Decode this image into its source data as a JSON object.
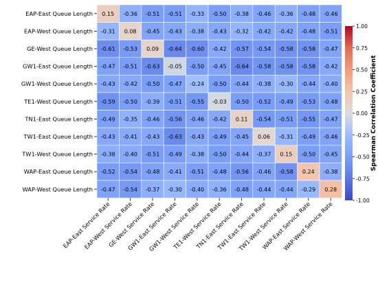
{
  "chart_data": {
    "type": "heatmap",
    "title": "",
    "xlabel": "",
    "ylabel": "",
    "rows": [
      "EAP-East Queue Length",
      "EAP-West Queue Length",
      "GE-West Queue Length",
      "GW1-East Queue Length",
      "GW1-West Queue Length",
      "TE1-West Queue Length",
      "TN1-East Queue Length",
      "TW1-East Queue Length",
      "TW1-West Queue Length",
      "WAP-East Queue Length",
      "WAP-West Queue Length"
    ],
    "columns": [
      "EAP-East Service Rate",
      "EAP-West Service Rate",
      "GE-West Service Rate",
      "GW1-East Service Rate",
      "GW1-West Service Rate",
      "TE1-West Service Rate",
      "TN1-East Service Rate",
      "TW1-East Service Rate",
      "TW1-West Service Rate",
      "WAP-East Service Rate",
      "WAP-West Service Rate"
    ],
    "values": [
      [
        "0.15",
        "-0.36",
        "-0.51",
        "-0.51",
        "-0.33",
        "-0.50",
        "-0.38",
        "-0.46",
        "-0.36",
        "-0.48",
        "-0.46"
      ],
      [
        "-0.31",
        "0.08",
        "-0.45",
        "-0.43",
        "-0.38",
        "-0.43",
        "-0.32",
        "-0.42",
        "-0.42",
        "-0.48",
        "-0.51"
      ],
      [
        "-0.61",
        "-0.53",
        "0.09",
        "-0.64",
        "-0.60",
        "-0.42",
        "-0.57",
        "-0.54",
        "-0.58",
        "-0.58",
        "-0.47"
      ],
      [
        "-0.47",
        "-0.51",
        "-0.63",
        "-0.05",
        "-0.50",
        "-0.45",
        "-0.64",
        "-0.58",
        "-0.58",
        "-0.58",
        "-0.42"
      ],
      [
        "-0.43",
        "-0.42",
        "-0.50",
        "-0.47",
        "-0.24",
        "-0.50",
        "-0.44",
        "-0.38",
        "-0.30",
        "-0.44",
        "-0.40"
      ],
      [
        "-0.59",
        "-0.50",
        "-0.39",
        "-0.51",
        "-0.55",
        "-0.03",
        "-0.50",
        "-0.52",
        "-0.49",
        "-0.53",
        "-0.48"
      ],
      [
        "-0.49",
        "-0.35",
        "-0.46",
        "-0.56",
        "-0.46",
        "-0.42",
        "0.11",
        "-0.54",
        "-0.51",
        "-0.55",
        "-0.47"
      ],
      [
        "-0.43",
        "-0.41",
        "-0.43",
        "-0.63",
        "-0.43",
        "-0.49",
        "-0.45",
        "0.06",
        "-0.31",
        "-0.49",
        "-0.46"
      ],
      [
        "-0.38",
        "-0.40",
        "-0.51",
        "-0.49",
        "-0.38",
        "-0.50",
        "-0.44",
        "-0.37",
        "0.15",
        "-0.50",
        "-0.45"
      ],
      [
        "-0.52",
        "-0.54",
        "-0.48",
        "-0.41",
        "-0.51",
        "-0.48",
        "-0.56",
        "-0.46",
        "-0.58",
        "0.24",
        "-0.38"
      ],
      [
        "-0.47",
        "-0.54",
        "-0.37",
        "-0.30",
        "-0.40",
        "-0.36",
        "-0.48",
        "-0.44",
        "-0.44",
        "-0.29",
        "0.28"
      ]
    ],
    "colorbar": {
      "label": "Spearman Correlation Coefficient",
      "min": -1.0,
      "max": 1.0,
      "colormap": "coolwarm",
      "ticks": [
        "1.00",
        "0.75",
        "0.50",
        "0.25",
        "0.00",
        "-0.25",
        "-0.50",
        "-0.75",
        "-1.00"
      ]
    }
  }
}
